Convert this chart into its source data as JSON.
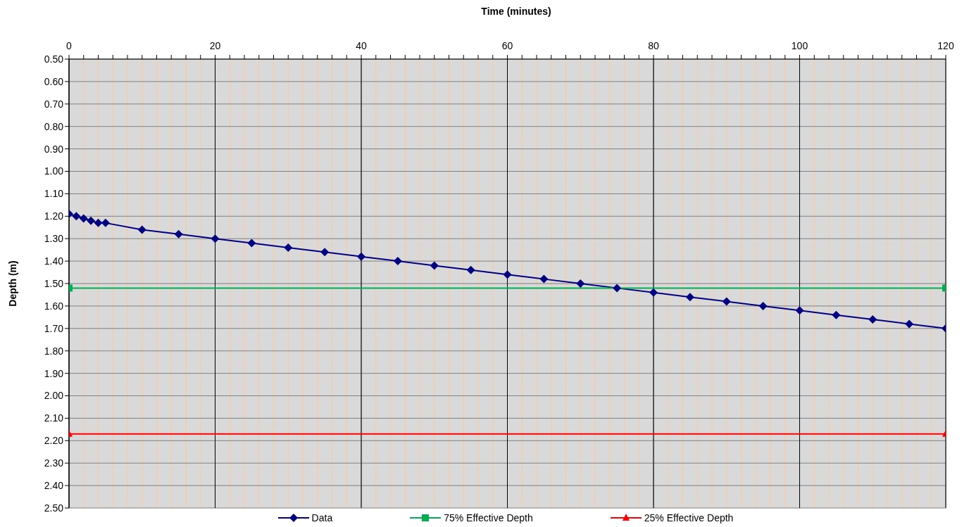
{
  "chart_data": {
    "type": "line",
    "xlabel": "Time (minutes)",
    "ylabel": "Depth (m)",
    "xlim": [
      0,
      120
    ],
    "xticks": [
      0,
      {
        "value": 2,
        "label": null
      },
      {
        "value": 4,
        "label": null
      },
      {
        "value": 6,
        "label": null
      },
      {
        "value": 8,
        "label": null
      },
      {
        "value": 10,
        "label": null
      },
      {
        "value": 12,
        "label": null
      },
      {
        "value": 14,
        "label": null
      },
      {
        "value": 16,
        "label": null
      },
      {
        "value": 18,
        "label": null
      },
      20,
      {
        "value": 22,
        "label": null
      },
      {
        "value": 24,
        "label": null
      },
      {
        "value": 26,
        "label": null
      },
      {
        "value": 28,
        "label": null
      },
      {
        "value": 30,
        "label": null
      },
      {
        "value": 32,
        "label": null
      },
      {
        "value": 34,
        "label": null
      },
      {
        "value": 36,
        "label": null
      },
      {
        "value": 38,
        "label": null
      },
      40,
      {
        "value": 42,
        "label": null
      },
      {
        "value": 44,
        "label": null
      },
      {
        "value": 46,
        "label": null
      },
      {
        "value": 48,
        "label": null
      },
      {
        "value": 50,
        "label": null
      },
      {
        "value": 52,
        "label": null
      },
      {
        "value": 54,
        "label": null
      },
      {
        "value": 56,
        "label": null
      },
      {
        "value": 58,
        "label": null
      },
      60,
      {
        "value": 62,
        "label": null
      },
      {
        "value": 64,
        "label": null
      },
      {
        "value": 66,
        "label": null
      },
      {
        "value": 68,
        "label": null
      },
      {
        "value": 70,
        "label": null
      },
      {
        "value": 72,
        "label": null
      },
      {
        "value": 74,
        "label": null
      },
      {
        "value": 76,
        "label": null
      },
      {
        "value": 78,
        "label": null
      },
      80,
      {
        "value": 82,
        "label": null
      },
      {
        "value": 84,
        "label": null
      },
      {
        "value": 86,
        "label": null
      },
      {
        "value": 88,
        "label": null
      },
      {
        "value": 90,
        "label": null
      },
      {
        "value": 92,
        "label": null
      },
      {
        "value": 94,
        "label": null
      },
      {
        "value": 96,
        "label": null
      },
      {
        "value": 98,
        "label": null
      },
      100,
      {
        "value": 102,
        "label": null
      },
      {
        "value": 104,
        "label": null
      },
      {
        "value": 106,
        "label": null
      },
      {
        "value": 108,
        "label": null
      },
      {
        "value": 110,
        "label": null
      },
      {
        "value": 112,
        "label": null
      },
      {
        "value": 114,
        "label": null
      },
      {
        "value": 116,
        "label": null
      },
      {
        "value": 118,
        "label": null
      },
      120
    ],
    "ylim": [
      2.5,
      0.5
    ],
    "yticks": [
      {
        "value": 0.5,
        "label": "0.50"
      },
      {
        "value": 0.6,
        "label": "0.60"
      },
      {
        "value": 0.7,
        "label": "0.70"
      },
      {
        "value": 0.8,
        "label": "0.80"
      },
      {
        "value": 0.9,
        "label": "0.90"
      },
      {
        "value": 1.0,
        "label": "1.00"
      },
      {
        "value": 1.1,
        "label": "1.10"
      },
      {
        "value": 1.2,
        "label": "1.20"
      },
      {
        "value": 1.3,
        "label": "1.30"
      },
      {
        "value": 1.4,
        "label": "1.40"
      },
      {
        "value": 1.5,
        "label": "1.50"
      },
      {
        "value": 1.6,
        "label": "1.60"
      },
      {
        "value": 1.7,
        "label": "1.70"
      },
      {
        "value": 1.8,
        "label": "1.80"
      },
      {
        "value": 1.9,
        "label": "1.90"
      },
      {
        "value": 2.0,
        "label": "2.00"
      },
      {
        "value": 2.1,
        "label": "2.10"
      },
      {
        "value": 2.2,
        "label": "2.20"
      },
      {
        "value": 2.3,
        "label": "2.30"
      },
      {
        "value": 2.4,
        "label": "2.40"
      },
      {
        "value": 2.5,
        "label": "2.50"
      }
    ],
    "grid": true,
    "legend": "bottom",
    "line_style": "solid",
    "series": [
      {
        "name": "Data",
        "color": "#000080",
        "marker": "diamond",
        "x": [
          0,
          1,
          2,
          3,
          4,
          5,
          10,
          15,
          20,
          25,
          30,
          35,
          40,
          45,
          50,
          55,
          60,
          65,
          70,
          75,
          80,
          85,
          90,
          95,
          100,
          105,
          110,
          115,
          120
        ],
        "values": [
          1.19,
          1.2,
          1.21,
          1.22,
          1.23,
          1.23,
          1.26,
          1.28,
          1.3,
          1.32,
          1.34,
          1.36,
          1.38,
          1.4,
          1.42,
          1.44,
          1.46,
          1.48,
          1.5,
          1.52,
          1.54,
          1.56,
          1.58,
          1.6,
          1.62,
          1.64,
          1.66,
          1.68,
          1.7
        ]
      },
      {
        "name": "75% Effective Depth",
        "color": "#00b050",
        "marker": "square",
        "x": [
          0,
          120
        ],
        "values": [
          1.52,
          1.52
        ]
      },
      {
        "name": "25% Effective Depth",
        "color": "#ff0000",
        "marker": "triangle",
        "x": [
          0,
          120
        ],
        "values": [
          2.17,
          2.17
        ]
      }
    ]
  }
}
